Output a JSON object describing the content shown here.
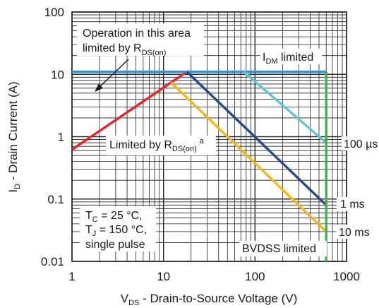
{
  "chart_data": {
    "type": "line",
    "x_scale": "log",
    "y_scale": "log",
    "xlim": [
      1,
      1000
    ],
    "ylim": [
      0.01,
      100
    ],
    "grid": true,
    "x_ticks": [
      "1",
      "10",
      "100",
      "1000"
    ],
    "y_ticks": [
      "100",
      "10",
      "1",
      "0.1",
      "0.01"
    ],
    "xlabel": {
      "main": "V",
      "sub": "DS",
      "rest": " - Drain-to-Source Voltage (V)"
    },
    "ylabel": {
      "main": "I",
      "sub": "D",
      "rest": " - Drain Current (A)"
    },
    "colors": {
      "rdson": "#e8242a",
      "idm": "#3a8fd0",
      "us100": "#5ec8d0",
      "ms1": "#244a8a",
      "ms10": "#f5b81c",
      "bvdss": "#3cb44a",
      "grid": "#222222"
    },
    "series": [
      {
        "name": "Limited by RDS(on)",
        "key": "rdson",
        "x": [
          1,
          18
        ],
        "y": [
          0.62,
          11
        ]
      },
      {
        "name": "IDM limited",
        "key": "idm",
        "x": [
          1,
          600
        ],
        "y": [
          11,
          11
        ]
      },
      {
        "name": "100 µs",
        "key": "us100",
        "x": [
          75,
          600
        ],
        "y": [
          11,
          0.8
        ]
      },
      {
        "name": "1 ms",
        "key": "ms1",
        "x": [
          18,
          600
        ],
        "y": [
          11,
          0.08
        ]
      },
      {
        "name": "10 ms",
        "key": "ms10",
        "x": [
          12,
          600
        ],
        "y": [
          7.5,
          0.03
        ]
      },
      {
        "name": "BVDSS limited",
        "key": "bvdss",
        "x": [
          600,
          600
        ],
        "y": [
          11,
          0.01
        ]
      }
    ],
    "annotations": {
      "operation_line1": "Operation in this area",
      "operation_line2": "limited by R",
      "operation_sub": "DS(on)",
      "rdson_label": "Limited by R",
      "rdson_sub": "DS(on)",
      "rdson_sup": "a",
      "idm_label": "I",
      "idm_sub": "DM",
      "idm_rest": " limited",
      "us100_label": "100 µs",
      "ms1_label": "1 ms",
      "ms10_label": "10 ms",
      "bvdss_label": "BVDSS limited",
      "cond1_main": "T",
      "cond1_sub": "C",
      "cond1_rest": " = 25 °C,",
      "cond2_main": "T",
      "cond2_sub": "J",
      "cond2_rest": " = 150 °C,",
      "cond3": "single pulse"
    }
  }
}
